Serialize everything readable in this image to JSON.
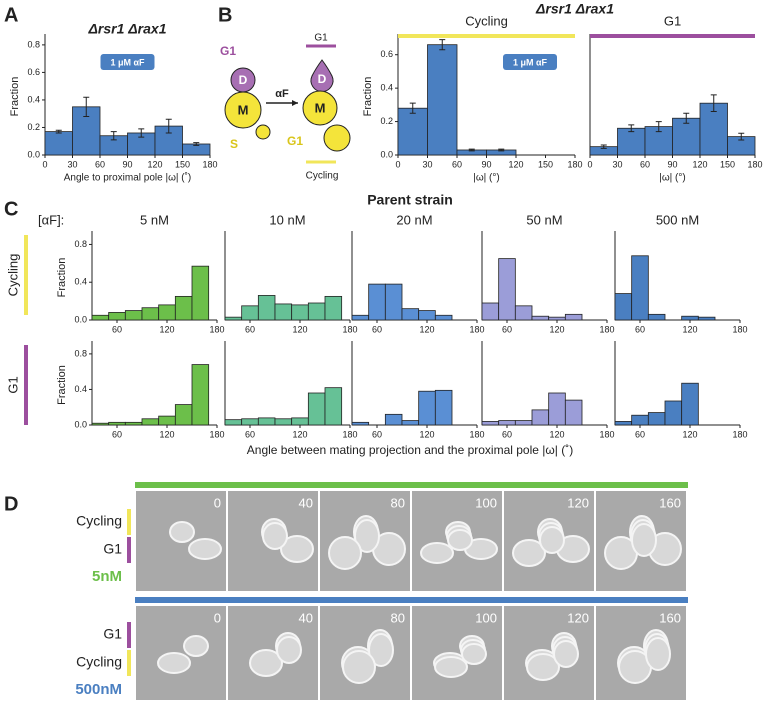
{
  "panels": {
    "a": "A",
    "b": "B",
    "c": "C",
    "d": "D"
  },
  "header_b": "Δrsr1 Δrax1",
  "cartoon": {
    "g1_top": "G1",
    "d1": "D",
    "m1": "M",
    "s": "S",
    "arrow": "αF",
    "g1_right": "G1",
    "d2": "D",
    "m2": "M",
    "g1_low": "G1",
    "cycling": "Cycling"
  },
  "panel_c": {
    "title": "Parent strain",
    "conc_label": "[αF]:",
    "rows": [
      "Cycling",
      "G1"
    ],
    "x_label": "Angle between mating projection and the proximal pole |ω| (˚)"
  },
  "panel_d": {
    "times": [
      0,
      40,
      80,
      100,
      120,
      160
    ],
    "times2": [
      0,
      40,
      80,
      100,
      120,
      160
    ],
    "row1": [
      "Cycling",
      "G1"
    ],
    "conc1": "5nM",
    "row2": [
      "G1",
      "Cycling"
    ],
    "conc2": "500nM"
  },
  "chart_data": [
    {
      "type": "histogram",
      "title": "Δrsr1 Δrax1",
      "annotation": "1 μM αF",
      "x_label": "Angle to proximal pole |ω| (˚)",
      "y_label": "Fraction",
      "color": "#4a7fc1",
      "bins": [
        0,
        30,
        60,
        90,
        120,
        150,
        180
      ],
      "values": [
        0.17,
        0.35,
        0.14,
        0.16,
        0.21,
        0.08
      ],
      "errors": [
        0.01,
        0.07,
        0.03,
        0.03,
        0.05,
        0.01
      ],
      "xlim": [
        0,
        180
      ],
      "xticks": [
        0,
        30,
        60,
        90,
        120,
        150,
        180
      ],
      "ylim": [
        0,
        0.85
      ],
      "yticks": [
        {
          "value": 0,
          "label": "0.0"
        },
        {
          "value": 0.2,
          "label": "0.2"
        },
        {
          "value": 0.4,
          "label": "0.4"
        },
        {
          "value": 0.6,
          "label": "0.6"
        },
        {
          "value": 0.8,
          "label": "0.8"
        }
      ]
    },
    {
      "type": "histogram",
      "title": "Cycling",
      "title_color": "#f1e65a",
      "annotation": "1 μM αF",
      "x_label": "|ω| (°)",
      "y_label": "Fraction",
      "color": "#4a7fc1",
      "bins": [
        0,
        30,
        60,
        90,
        120,
        150,
        180
      ],
      "values": [
        0.28,
        0.66,
        0.03,
        0.03,
        null,
        null
      ],
      "errors": [
        0.03,
        0.03,
        0.005,
        0.005,
        null,
        null
      ],
      "xlim": [
        0,
        180
      ],
      "xticks": [
        0,
        30,
        60,
        90,
        120,
        150,
        180
      ],
      "ylim": [
        0,
        0.7
      ],
      "yticks": [
        {
          "value": 0,
          "label": "0.0"
        },
        {
          "value": 0.2,
          "label": "0.2"
        },
        {
          "value": 0.4,
          "label": "0.4"
        },
        {
          "value": 0.6,
          "label": "0.6"
        }
      ]
    },
    {
      "type": "histogram",
      "title": "G1",
      "title_color": "#9c4f9e",
      "x_label": "|ω| (°)",
      "color": "#4a7fc1",
      "bins": [
        0,
        30,
        60,
        90,
        120,
        150,
        180
      ],
      "values": [
        0.05,
        0.16,
        0.17,
        0.22,
        0.31,
        0.11
      ],
      "errors": [
        0.01,
        0.02,
        0.03,
        0.03,
        0.05,
        0.02
      ],
      "xlim": [
        0,
        180
      ],
      "xticks": [
        0,
        30,
        60,
        90,
        120,
        150,
        180
      ],
      "ylim": [
        0,
        0.7
      ]
    },
    {
      "type": "histogram",
      "title": "5 nM",
      "y_label": "Fraction",
      "color": "#6cbf4a",
      "bins": [
        30,
        50,
        70,
        90,
        110,
        130,
        150,
        170
      ],
      "values": [
        0.05,
        0.08,
        0.1,
        0.13,
        0.16,
        0.25,
        0.57
      ],
      "xlim": [
        30,
        180
      ],
      "xticks": [
        60,
        120,
        180
      ],
      "ylim": [
        0,
        0.9
      ],
      "yticks": [
        {
          "value": 0,
          "label": "0.0"
        },
        {
          "value": 0.4,
          "label": "0.4"
        },
        {
          "value": 0.8,
          "label": "0.8"
        }
      ]
    },
    {
      "type": "histogram",
      "title": "10 nM",
      "color": "#66c196",
      "bins": [
        30,
        50,
        70,
        90,
        110,
        130,
        150,
        170
      ],
      "values": [
        0.03,
        0.15,
        0.26,
        0.17,
        0.16,
        0.18,
        0.25
      ],
      "xlim": [
        30,
        180
      ],
      "xticks": [
        60,
        120,
        180
      ],
      "ylim": [
        0,
        0.9
      ]
    },
    {
      "type": "histogram",
      "title": "20 nM",
      "color": "#5a8fd4",
      "bins": [
        30,
        50,
        70,
        90,
        110,
        130,
        150,
        170
      ],
      "values": [
        0.05,
        0.38,
        0.38,
        0.12,
        0.1,
        0.05,
        null
      ],
      "xlim": [
        30,
        180
      ],
      "xticks": [
        60,
        120,
        180
      ],
      "ylim": [
        0,
        0.9
      ]
    },
    {
      "type": "histogram",
      "title": "50 nM",
      "color": "#9b9dd8",
      "bins": [
        30,
        50,
        70,
        90,
        110,
        130,
        150,
        170
      ],
      "values": [
        0.18,
        0.65,
        0.15,
        0.04,
        0.03,
        0.06,
        null
      ],
      "xlim": [
        30,
        180
      ],
      "xticks": [
        60,
        120,
        180
      ],
      "ylim": [
        0,
        0.9
      ]
    },
    {
      "type": "histogram",
      "title": "500 nM",
      "color": "#4a7fc1",
      "bins": [
        30,
        50,
        70,
        90,
        110,
        130,
        150,
        170
      ],
      "values": [
        0.28,
        0.68,
        0.06,
        null,
        0.04,
        0.03,
        null
      ],
      "xlim": [
        30,
        180
      ],
      "xticks": [
        60,
        120,
        180
      ],
      "ylim": [
        0,
        0.9
      ]
    },
    {
      "type": "histogram",
      "y_label": "Fraction",
      "color": "#6cbf4a",
      "bins": [
        30,
        50,
        70,
        90,
        110,
        130,
        150,
        170
      ],
      "values": [
        0.02,
        0.03,
        0.03,
        0.07,
        0.1,
        0.23,
        0.68
      ],
      "xlim": [
        30,
        180
      ],
      "xticks": [
        60,
        120,
        180
      ],
      "ylim": [
        0,
        0.9
      ],
      "yticks": [
        {
          "value": 0,
          "label": "0.0"
        },
        {
          "value": 0.4,
          "label": "0.4"
        },
        {
          "value": 0.8,
          "label": "0.8"
        }
      ]
    },
    {
      "type": "histogram",
      "color": "#66c196",
      "bins": [
        30,
        50,
        70,
        90,
        110,
        130,
        150,
        170
      ],
      "values": [
        0.06,
        0.07,
        0.08,
        0.07,
        0.08,
        0.36,
        0.42
      ],
      "xlim": [
        30,
        180
      ],
      "xticks": [
        60,
        120,
        180
      ],
      "ylim": [
        0,
        0.9
      ]
    },
    {
      "type": "histogram",
      "color": "#5a8fd4",
      "bins": [
        30,
        50,
        70,
        90,
        110,
        130,
        150,
        170
      ],
      "values": [
        0.03,
        null,
        0.12,
        0.05,
        0.38,
        0.39,
        null
      ],
      "xlim": [
        30,
        180
      ],
      "xticks": [
        60,
        120,
        180
      ],
      "ylim": [
        0,
        0.9
      ]
    },
    {
      "type": "histogram",
      "color": "#9b9dd8",
      "bins": [
        30,
        50,
        70,
        90,
        110,
        130,
        150,
        170
      ],
      "values": [
        0.04,
        0.05,
        0.05,
        0.17,
        0.36,
        0.28,
        null
      ],
      "xlim": [
        30,
        180
      ],
      "xticks": [
        60,
        120,
        180
      ],
      "ylim": [
        0,
        0.9
      ]
    },
    {
      "type": "histogram",
      "color": "#4a7fc1",
      "bins": [
        30,
        50,
        70,
        90,
        110,
        130,
        150,
        170
      ],
      "values": [
        0.04,
        0.11,
        0.14,
        0.27,
        0.47,
        null,
        null
      ],
      "xlim": [
        30,
        180
      ],
      "xticks": [
        60,
        120,
        180
      ],
      "ylim": [
        0,
        0.9
      ]
    }
  ]
}
